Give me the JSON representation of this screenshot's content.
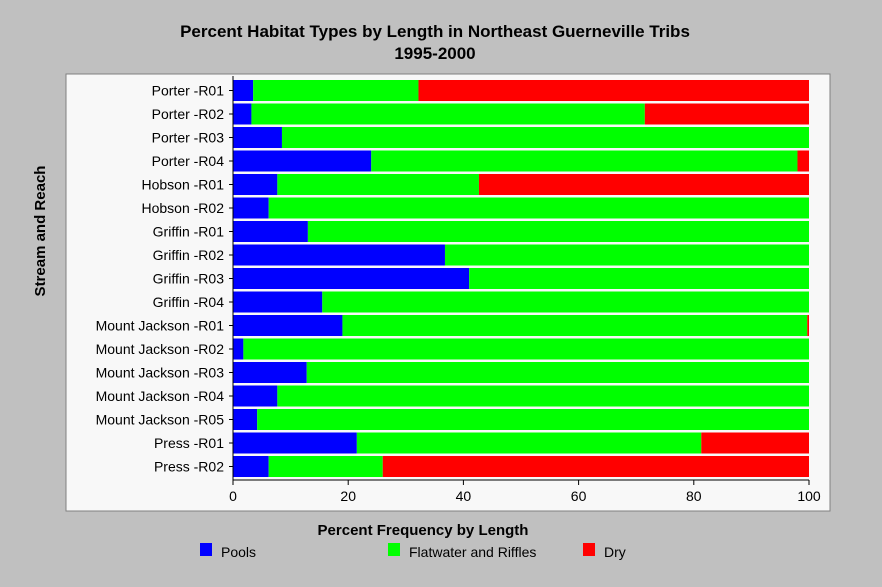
{
  "chart_data": {
    "type": "bar",
    "orientation": "horizontal",
    "stacked": true,
    "title": "Percent Habitat Types by Length in Northeast Guerneville Tribs",
    "subtitle": "1995-2000",
    "xlabel": "Percent Frequency by Length",
    "ylabel": "Stream and Reach",
    "xlim": [
      0,
      100
    ],
    "xticks": [
      0,
      20,
      40,
      60,
      80,
      100
    ],
    "grid": false,
    "legend_position": "bottom",
    "categories": [
      "Porter -R01",
      "Porter -R02",
      "Porter -R03",
      "Porter -R04",
      "Hobson -R01",
      "Hobson -R02",
      "Griffin -R01",
      "Griffin -R02",
      "Griffin -R03",
      "Griffin -R04",
      "Mount Jackson -R01",
      "Mount Jackson -R02",
      "Mount Jackson -R03",
      "Mount Jackson -R04",
      "Mount Jackson -R05",
      "Press -R01",
      "Press -R02"
    ],
    "series": [
      {
        "name": "Pools",
        "color": "#0000ff",
        "values": [
          3.5,
          3.2,
          8.5,
          24,
          7.7,
          6.2,
          13,
          36.8,
          41,
          15.5,
          19,
          1.8,
          12.8,
          7.7,
          4.2,
          21.5,
          6.2
        ]
      },
      {
        "name": "Flatwater and Riffles",
        "color": "#00ff00",
        "values": [
          28.7,
          68.3,
          91.5,
          74,
          35,
          93.8,
          87,
          63.2,
          59,
          84.5,
          80.7,
          98.2,
          87.2,
          92.3,
          95.8,
          59.8,
          19.8
        ]
      },
      {
        "name": "Dry",
        "color": "#ff0000",
        "values": [
          67.8,
          28.5,
          0,
          2,
          57.3,
          0,
          0,
          0,
          0,
          0,
          0.3,
          0,
          0,
          0,
          0,
          18.7,
          74
        ]
      }
    ]
  }
}
